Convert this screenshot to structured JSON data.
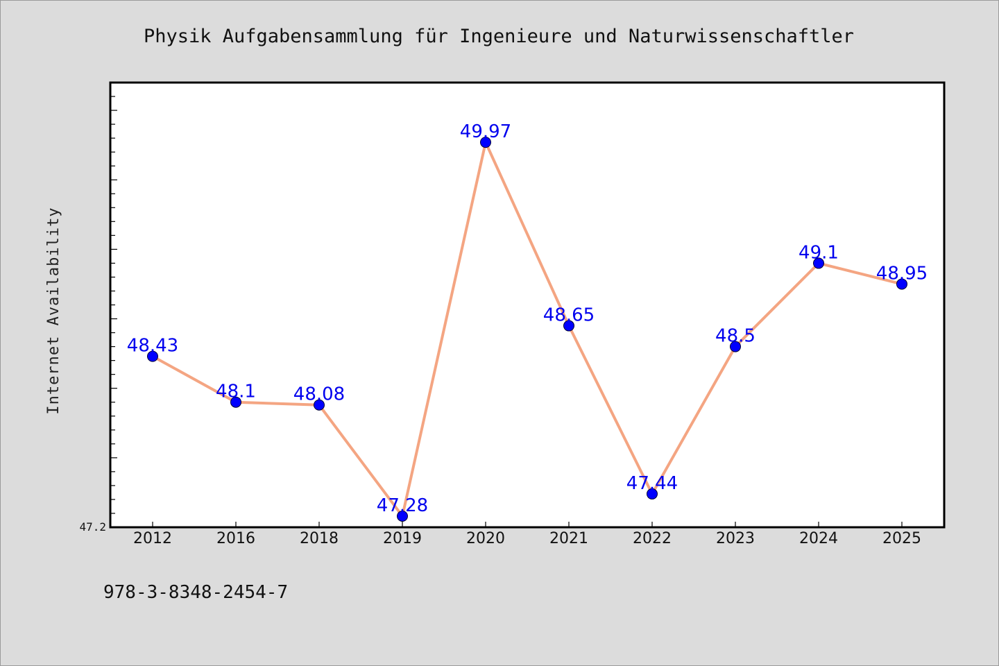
{
  "chart_data": {
    "type": "line",
    "title": "Physik Aufgabensammlung für Ingenieure und Naturwissenschaftler",
    "xlabel": "",
    "ylabel": "Internet Availability",
    "categories": [
      "2012",
      "2016",
      "2018",
      "2019",
      "2020",
      "2021",
      "2022",
      "2023",
      "2024",
      "2025"
    ],
    "series": [
      {
        "values": [
          48.43,
          48.1,
          48.08,
          47.28,
          49.97,
          48.65,
          47.44,
          48.5,
          49.1,
          48.95
        ],
        "labels": [
          "48.43",
          "48.1",
          "48.08",
          "47.28",
          "49.97",
          "48.65",
          "47.44",
          "48.5",
          "49.1",
          "48.95"
        ]
      }
    ],
    "ylim": [
      47.2,
      50.4
    ],
    "ytick_labels": [
      "47.2"
    ],
    "grid": false,
    "colors": {
      "line": "#f4a582",
      "marker": "#0000ff",
      "label": "#0000ee"
    }
  },
  "footer": {
    "isbn": "978-3-8348-2454-7"
  }
}
